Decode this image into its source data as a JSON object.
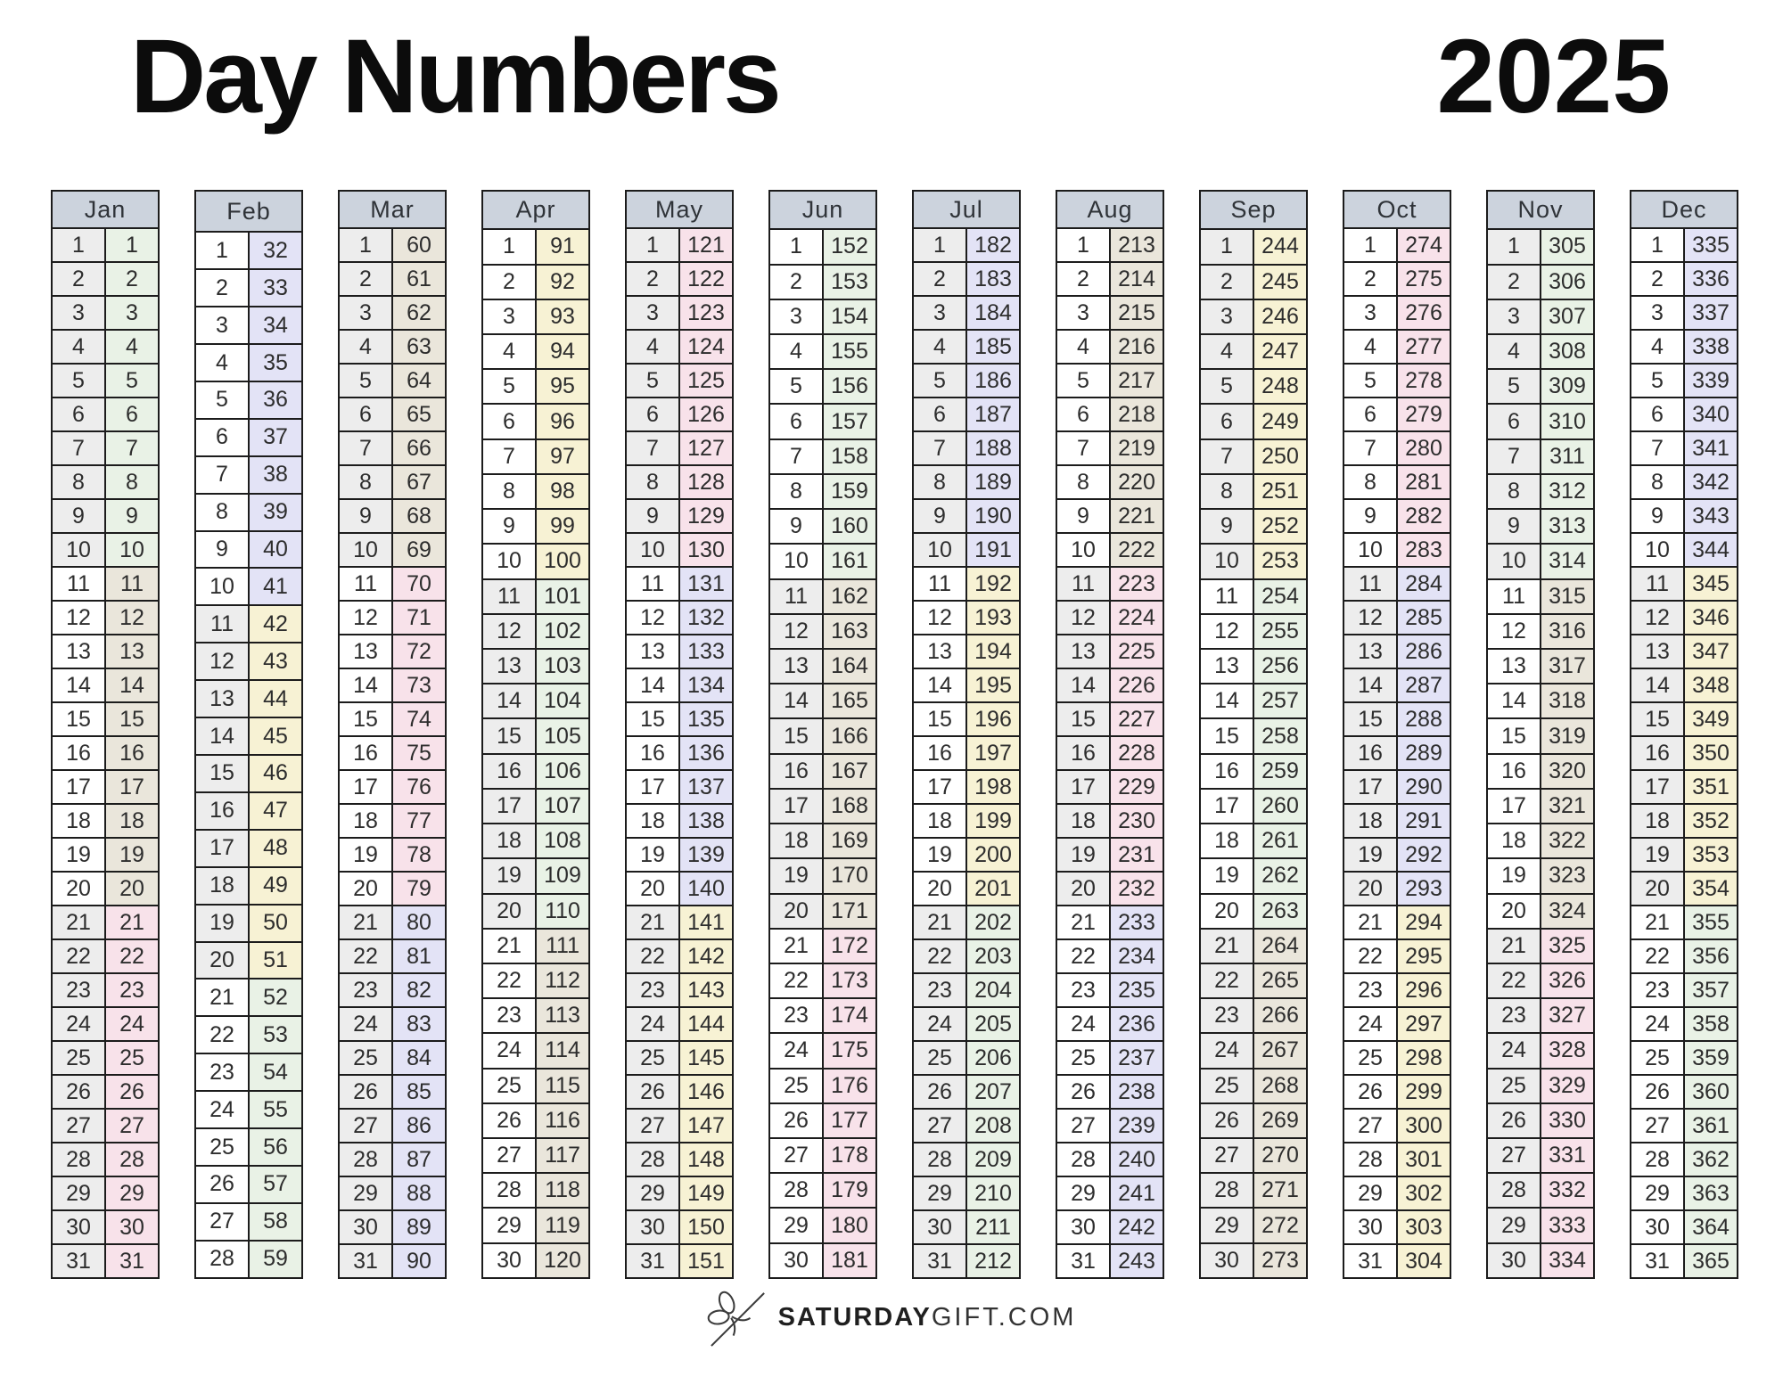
{
  "header": {
    "title": "Day Numbers",
    "year": "2025"
  },
  "footer": {
    "brand_bold": "SATURDAY",
    "brand_rest": "GIFT.COM",
    "icon": "gift-bow-icon"
  },
  "table": {
    "colors": {
      "header_bg": "#ccd3dd",
      "border": "#1c1c1c",
      "cell_text": "#2d2d2d",
      "left_gray": "#ededed",
      "left_white": "#ffffff",
      "palette": [
        "#e9f2e6",
        "#eae6db",
        "#f8e2ea",
        "#e3e3f6",
        "#f7f2d4"
      ],
      "palette_names": [
        "green",
        "beige",
        "pink",
        "lavender",
        "yellow"
      ]
    },
    "months": [
      {
        "name": "Jan",
        "days": 31,
        "dom": [
          1,
          2,
          3,
          4,
          5,
          6,
          7,
          8,
          9,
          10,
          11,
          12,
          13,
          14,
          15,
          16,
          17,
          18,
          19,
          20,
          21,
          22,
          23,
          24,
          25,
          26,
          27,
          28,
          29,
          30,
          31
        ],
        "doy": [
          1,
          2,
          3,
          4,
          5,
          6,
          7,
          8,
          9,
          10,
          11,
          12,
          13,
          14,
          15,
          16,
          17,
          18,
          19,
          20,
          21,
          22,
          23,
          24,
          25,
          26,
          27,
          28,
          29,
          30,
          31
        ]
      },
      {
        "name": "Feb",
        "days": 28,
        "dom": [
          1,
          2,
          3,
          4,
          5,
          6,
          7,
          8,
          9,
          10,
          11,
          12,
          13,
          14,
          15,
          16,
          17,
          18,
          19,
          20,
          21,
          22,
          23,
          24,
          25,
          26,
          27,
          28
        ],
        "doy": [
          32,
          33,
          34,
          35,
          36,
          37,
          38,
          39,
          40,
          41,
          42,
          43,
          44,
          45,
          46,
          47,
          48,
          49,
          50,
          51,
          52,
          53,
          54,
          55,
          56,
          57,
          58,
          59
        ]
      },
      {
        "name": "Mar",
        "days": 31,
        "dom": [
          1,
          2,
          3,
          4,
          5,
          6,
          7,
          8,
          9,
          10,
          11,
          12,
          13,
          14,
          15,
          16,
          17,
          18,
          19,
          20,
          21,
          22,
          23,
          24,
          25,
          26,
          27,
          28,
          29,
          30,
          31
        ],
        "doy": [
          60,
          61,
          62,
          63,
          64,
          65,
          66,
          67,
          68,
          69,
          70,
          71,
          72,
          73,
          74,
          75,
          76,
          77,
          78,
          79,
          80,
          81,
          82,
          83,
          84,
          85,
          86,
          87,
          88,
          89,
          90
        ]
      },
      {
        "name": "Apr",
        "days": 30,
        "dom": [
          1,
          2,
          3,
          4,
          5,
          6,
          7,
          8,
          9,
          10,
          11,
          12,
          13,
          14,
          15,
          16,
          17,
          18,
          19,
          20,
          21,
          22,
          23,
          24,
          25,
          26,
          27,
          28,
          29,
          30
        ],
        "doy": [
          91,
          92,
          93,
          94,
          95,
          96,
          97,
          98,
          99,
          100,
          101,
          102,
          103,
          104,
          105,
          106,
          107,
          108,
          109,
          110,
          111,
          112,
          113,
          114,
          115,
          116,
          117,
          118,
          119,
          120
        ]
      },
      {
        "name": "May",
        "days": 31,
        "dom": [
          1,
          2,
          3,
          4,
          5,
          6,
          7,
          8,
          9,
          10,
          11,
          12,
          13,
          14,
          15,
          16,
          17,
          18,
          19,
          20,
          21,
          22,
          23,
          24,
          25,
          26,
          27,
          28,
          29,
          30,
          31
        ],
        "doy": [
          121,
          122,
          123,
          124,
          125,
          126,
          127,
          128,
          129,
          130,
          131,
          132,
          133,
          134,
          135,
          136,
          137,
          138,
          139,
          140,
          141,
          142,
          143,
          144,
          145,
          146,
          147,
          148,
          149,
          150,
          151
        ]
      },
      {
        "name": "Jun",
        "days": 30,
        "dom": [
          1,
          2,
          3,
          4,
          5,
          6,
          7,
          8,
          9,
          10,
          11,
          12,
          13,
          14,
          15,
          16,
          17,
          18,
          19,
          20,
          21,
          22,
          23,
          24,
          25,
          26,
          27,
          28,
          29,
          30
        ],
        "doy": [
          152,
          153,
          154,
          155,
          156,
          157,
          158,
          159,
          160,
          161,
          162,
          163,
          164,
          165,
          166,
          167,
          168,
          169,
          170,
          171,
          172,
          173,
          174,
          175,
          176,
          177,
          178,
          179,
          180,
          181
        ]
      },
      {
        "name": "Jul",
        "days": 31,
        "dom": [
          1,
          2,
          3,
          4,
          5,
          6,
          7,
          8,
          9,
          10,
          11,
          12,
          13,
          14,
          15,
          16,
          17,
          18,
          19,
          20,
          21,
          22,
          23,
          24,
          25,
          26,
          27,
          28,
          29,
          30,
          31
        ],
        "doy": [
          182,
          183,
          184,
          185,
          186,
          187,
          188,
          189,
          190,
          191,
          192,
          193,
          194,
          195,
          196,
          197,
          198,
          199,
          200,
          201,
          202,
          203,
          204,
          205,
          206,
          207,
          208,
          209,
          210,
          211,
          212
        ]
      },
      {
        "name": "Aug",
        "days": 31,
        "dom": [
          1,
          2,
          3,
          4,
          5,
          6,
          7,
          8,
          9,
          10,
          11,
          12,
          13,
          14,
          15,
          16,
          17,
          18,
          19,
          20,
          21,
          22,
          23,
          24,
          25,
          26,
          27,
          28,
          29,
          30,
          31
        ],
        "doy": [
          213,
          214,
          215,
          216,
          217,
          218,
          219,
          220,
          221,
          222,
          223,
          224,
          225,
          226,
          227,
          228,
          229,
          230,
          231,
          232,
          233,
          234,
          235,
          236,
          237,
          238,
          239,
          240,
          241,
          242,
          243
        ]
      },
      {
        "name": "Sep",
        "days": 30,
        "dom": [
          1,
          2,
          3,
          4,
          5,
          6,
          7,
          8,
          9,
          10,
          11,
          12,
          13,
          14,
          15,
          16,
          17,
          18,
          19,
          20,
          21,
          22,
          23,
          24,
          25,
          26,
          27,
          28,
          29,
          30
        ],
        "doy": [
          244,
          245,
          246,
          247,
          248,
          249,
          250,
          251,
          252,
          253,
          254,
          255,
          256,
          257,
          258,
          259,
          260,
          261,
          262,
          263,
          264,
          265,
          266,
          267,
          268,
          269,
          270,
          271,
          272,
          273
        ]
      },
      {
        "name": "Oct",
        "days": 31,
        "dom": [
          1,
          2,
          3,
          4,
          5,
          6,
          7,
          8,
          9,
          10,
          11,
          12,
          13,
          14,
          15,
          16,
          17,
          18,
          19,
          20,
          21,
          22,
          23,
          24,
          25,
          26,
          27,
          28,
          29,
          30,
          31
        ],
        "doy": [
          274,
          275,
          276,
          277,
          278,
          279,
          280,
          281,
          282,
          283,
          284,
          285,
          286,
          287,
          288,
          289,
          290,
          291,
          292,
          293,
          294,
          295,
          296,
          297,
          298,
          299,
          300,
          301,
          302,
          303,
          304
        ]
      },
      {
        "name": "Nov",
        "days": 30,
        "dom": [
          1,
          2,
          3,
          4,
          5,
          6,
          7,
          8,
          9,
          10,
          11,
          12,
          13,
          14,
          15,
          16,
          17,
          18,
          19,
          20,
          21,
          22,
          23,
          24,
          25,
          26,
          27,
          28,
          29,
          30
        ],
        "doy": [
          305,
          306,
          307,
          308,
          309,
          310,
          311,
          312,
          313,
          314,
          315,
          316,
          317,
          318,
          319,
          320,
          321,
          322,
          323,
          324,
          325,
          326,
          327,
          328,
          329,
          330,
          331,
          332,
          333,
          334
        ]
      },
      {
        "name": "Dec",
        "days": 31,
        "dom": [
          1,
          2,
          3,
          4,
          5,
          6,
          7,
          8,
          9,
          10,
          11,
          12,
          13,
          14,
          15,
          16,
          17,
          18,
          19,
          20,
          21,
          22,
          23,
          24,
          25,
          26,
          27,
          28,
          29,
          30,
          31
        ],
        "doy": [
          335,
          336,
          337,
          338,
          339,
          340,
          341,
          342,
          343,
          344,
          345,
          346,
          347,
          348,
          349,
          350,
          351,
          352,
          353,
          354,
          355,
          356,
          357,
          358,
          359,
          360,
          361,
          362,
          363,
          364,
          365
        ]
      }
    ]
  }
}
